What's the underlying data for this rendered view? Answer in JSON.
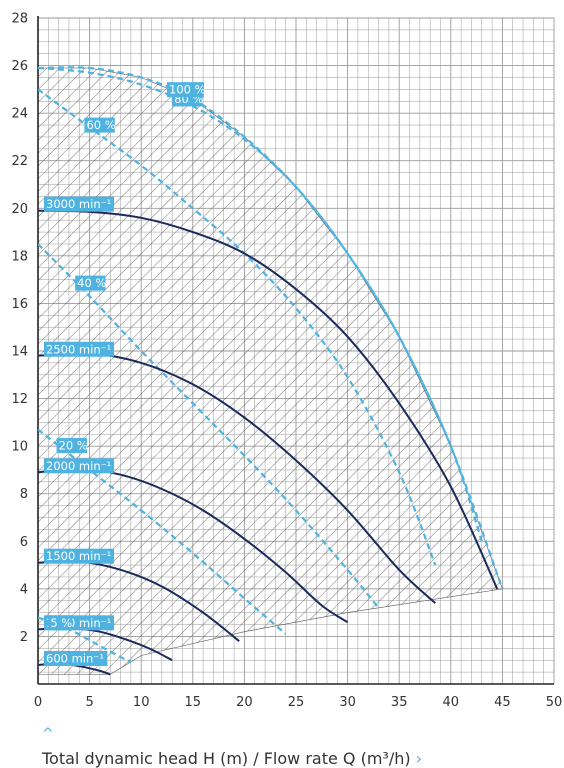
{
  "chart_data": {
    "type": "line",
    "xlabel": "Total dynamic head H (m) / Flow rate Q (m³/h)",
    "xlim": [
      0,
      50
    ],
    "ylim": [
      0,
      28
    ],
    "x_ticks": [
      0,
      5,
      10,
      15,
      20,
      25,
      30,
      35,
      40,
      45,
      50
    ],
    "y_ticks": [
      2,
      4,
      6,
      8,
      10,
      12,
      14,
      16,
      18,
      20,
      22,
      24,
      26,
      28
    ],
    "grid": true,
    "speed_curves": [
      {
        "label": "600 min⁻¹",
        "x": [
          0,
          2,
          4,
          6,
          7
        ],
        "y": [
          0.8,
          0.85,
          0.75,
          0.55,
          0.4
        ]
      },
      {
        "label": "1000 min⁻¹",
        "x": [
          0,
          3,
          6,
          9,
          11,
          13
        ],
        "y": [
          2.3,
          2.35,
          2.2,
          1.8,
          1.45,
          1.0
        ]
      },
      {
        "label": "1500 min⁻¹",
        "x": [
          0,
          4,
          8,
          12,
          16,
          19.5
        ],
        "y": [
          5.1,
          5.15,
          4.8,
          4.1,
          3.0,
          1.8
        ]
      },
      {
        "label": "2000 min⁻¹",
        "x": [
          0,
          4,
          8,
          12,
          16,
          20,
          24,
          27.5,
          30
        ],
        "y": [
          8.9,
          9.05,
          8.8,
          8.2,
          7.3,
          6.1,
          4.7,
          3.3,
          2.6
        ]
      },
      {
        "label": "2500 min⁻¹",
        "x": [
          0,
          5,
          10,
          15,
          20,
          25,
          30,
          35,
          38.5
        ],
        "y": [
          13.8,
          13.9,
          13.5,
          12.6,
          11.2,
          9.4,
          7.3,
          4.8,
          3.4
        ]
      },
      {
        "label": "3000 min⁻¹",
        "x": [
          0,
          5,
          10,
          15,
          20,
          25,
          30,
          35,
          40,
          44.5
        ],
        "y": [
          19.9,
          19.85,
          19.6,
          19.0,
          18.1,
          16.6,
          14.6,
          11.8,
          8.3,
          4.0
        ]
      }
    ],
    "efficiency_curves": [
      {
        "label": "5 %",
        "x": [
          0,
          3,
          6,
          9
        ],
        "y": [
          2.8,
          2.3,
          1.6,
          0.9
        ]
      },
      {
        "label": "20 %",
        "x": [
          0,
          5,
          10,
          15,
          20,
          24
        ],
        "y": [
          10.7,
          9.0,
          7.3,
          5.5,
          3.6,
          2.1
        ]
      },
      {
        "label": "40 %",
        "x": [
          0,
          5,
          10,
          15,
          20,
          25,
          30,
          33
        ],
        "y": [
          18.5,
          16.3,
          14.0,
          11.8,
          9.6,
          7.3,
          4.8,
          3.2
        ]
      },
      {
        "label": "60 %",
        "x": [
          0,
          5,
          10,
          15,
          20,
          25,
          30,
          35,
          38.5
        ],
        "y": [
          25.0,
          23.4,
          21.8,
          20.0,
          18.1,
          15.8,
          12.9,
          8.9,
          5.0
        ]
      },
      {
        "label": "80 %",
        "x": [
          0,
          5,
          10,
          15,
          20,
          25,
          30,
          35,
          40,
          43
        ],
        "y": [
          25.9,
          25.7,
          25.2,
          24.3,
          22.9,
          20.9,
          18.1,
          14.6,
          10.0,
          6.0
        ]
      },
      {
        "label": "100 %",
        "x": [
          0,
          5,
          10,
          15,
          20,
          25,
          30,
          35,
          40,
          45
        ],
        "y": [
          25.9,
          25.9,
          25.5,
          24.6,
          23.0,
          20.9,
          18.1,
          14.6,
          10.0,
          4.0
        ]
      }
    ],
    "operating_region": {
      "x": [
        0,
        5,
        10,
        15,
        20,
        25,
        30,
        35,
        40,
        45,
        30,
        20,
        10,
        7,
        0
      ],
      "y": [
        25.9,
        25.9,
        25.5,
        24.6,
        23.0,
        20.9,
        18.1,
        14.6,
        10.0,
        4.0,
        3.0,
        2.2,
        1.2,
        0.4,
        0.4
      ]
    },
    "colors": {
      "speed": "#1b2a5c",
      "efficiency": "#4fb3e2",
      "grid": "#9a9a9a",
      "hatch": "#555555",
      "axis": "#222222",
      "accent": "#4fb3e2"
    }
  }
}
